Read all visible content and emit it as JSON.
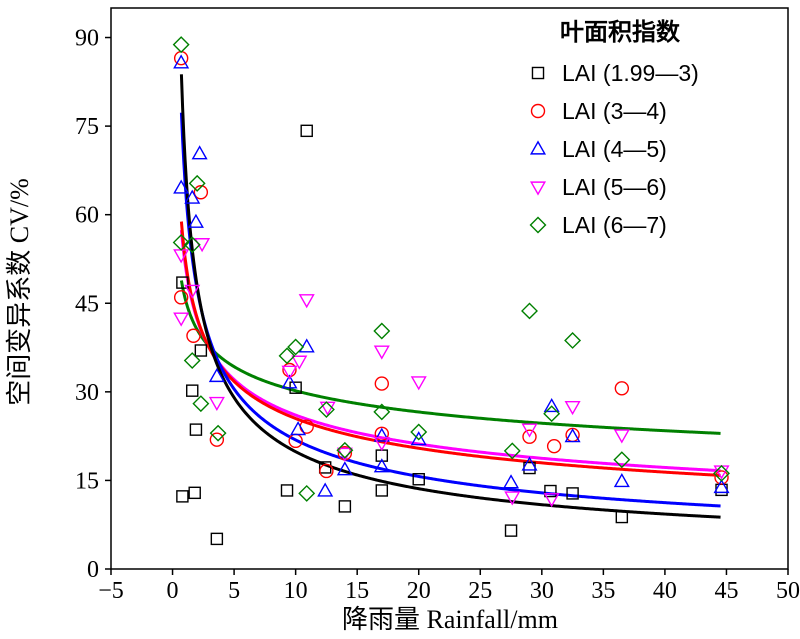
{
  "chart_data": {
    "type": "scatter",
    "xlabel": "降雨量 Rainfall/mm",
    "ylabel": "空间变异系数 CV/%",
    "xlim": [
      -5,
      50
    ],
    "ylim": [
      0,
      95
    ],
    "xticks": [
      -5,
      0,
      5,
      10,
      15,
      20,
      25,
      30,
      35,
      40,
      45,
      50
    ],
    "yticks": [
      0,
      15,
      30,
      45,
      60,
      75,
      90
    ],
    "xtick_labels": [
      "−5",
      "0",
      "5",
      "10",
      "15",
      "20",
      "25",
      "30",
      "35",
      "40",
      "45",
      "50"
    ],
    "ytick_labels": [
      "0",
      "15",
      "30",
      "45",
      "60",
      "75",
      "90"
    ],
    "grid": false,
    "legend_title": "叶面积指数",
    "legend_position": "top-right",
    "series": [
      {
        "name": "LAI (1.99—3)",
        "marker": "square",
        "color": "#000000",
        "points": [
          [
            0.8,
            48.5
          ],
          [
            0.8,
            12.3
          ],
          [
            1.8,
            12.9
          ],
          [
            1.6,
            30.2
          ],
          [
            1.9,
            23.6
          ],
          [
            2.3,
            37.0
          ],
          [
            3.6,
            5.1
          ],
          [
            9.3,
            13.3
          ],
          [
            10.0,
            30.7
          ],
          [
            10.9,
            74.2
          ],
          [
            12.4,
            17.2
          ],
          [
            14.0,
            10.6
          ],
          [
            17.0,
            13.3
          ],
          [
            17.0,
            19.2
          ],
          [
            20.0,
            15.2
          ],
          [
            27.5,
            6.5
          ],
          [
            29.0,
            17.1
          ],
          [
            30.7,
            13.2
          ],
          [
            32.5,
            12.8
          ],
          [
            36.5,
            8.8
          ],
          [
            44.6,
            13.4
          ]
        ],
        "fit": [
          70.0,
          -0.547
        ]
      },
      {
        "name": "LAI (3—4)",
        "marker": "circle",
        "color": "#ff0000",
        "points": [
          [
            0.7,
            86.5
          ],
          [
            0.7,
            46.0
          ],
          [
            1.7,
            39.5
          ],
          [
            2.3,
            63.8
          ],
          [
            3.6,
            21.9
          ],
          [
            9.5,
            33.7
          ],
          [
            10.0,
            21.7
          ],
          [
            10.9,
            24.1
          ],
          [
            12.5,
            16.6
          ],
          [
            14.0,
            19.6
          ],
          [
            17.0,
            31.4
          ],
          [
            17.0,
            22.9
          ],
          [
            29.0,
            22.4
          ],
          [
            31.0,
            20.8
          ],
          [
            32.5,
            22.7
          ],
          [
            36.5,
            30.6
          ],
          [
            44.6,
            15.5
          ]
        ],
        "fit": [
          53.0,
          -0.318
        ]
      },
      {
        "name": "LAI (4—5)",
        "marker": "triangle-up",
        "color": "#0000ff",
        "points": [
          [
            0.7,
            85.7
          ],
          [
            0.7,
            64.5
          ],
          [
            1.6,
            62.8
          ],
          [
            1.9,
            58.7
          ],
          [
            2.2,
            70.3
          ],
          [
            3.6,
            32.6
          ],
          [
            9.5,
            31.5
          ],
          [
            10.2,
            23.6
          ],
          [
            10.9,
            37.6
          ],
          [
            12.4,
            13.2
          ],
          [
            14.0,
            16.8
          ],
          [
            17.0,
            17.3
          ],
          [
            17.0,
            22.5
          ],
          [
            20.0,
            21.9
          ],
          [
            27.5,
            14.6
          ],
          [
            29.0,
            17.6
          ],
          [
            30.8,
            27.5
          ],
          [
            32.5,
            22.4
          ],
          [
            36.5,
            14.8
          ],
          [
            44.6,
            13.8
          ]
        ],
        "fit": [
          66.0,
          -0.48
        ]
      },
      {
        "name": "LAI (5—6)",
        "marker": "triangle-down",
        "color": "#ff00ff",
        "points": [
          [
            0.7,
            53.2
          ],
          [
            0.7,
            42.5
          ],
          [
            1.6,
            47.2
          ],
          [
            2.4,
            55.1
          ],
          [
            3.6,
            28.2
          ],
          [
            9.5,
            33.5
          ],
          [
            10.3,
            35.2
          ],
          [
            10.9,
            45.6
          ],
          [
            12.6,
            27.4
          ],
          [
            14.0,
            19.6
          ],
          [
            17.0,
            36.9
          ],
          [
            17.0,
            21.4
          ],
          [
            20.0,
            31.7
          ],
          [
            27.6,
            12.2
          ],
          [
            29.0,
            23.7
          ],
          [
            30.8,
            11.9
          ],
          [
            32.5,
            27.5
          ],
          [
            36.5,
            22.7
          ],
          [
            44.6,
            16.6
          ]
        ],
        "fit": [
          52.0,
          -0.3
        ]
      },
      {
        "name": "LAI (6—7)",
        "marker": "diamond",
        "color": "#008000",
        "points": [
          [
            0.7,
            88.8
          ],
          [
            0.7,
            55.3
          ],
          [
            1.6,
            54.9
          ],
          [
            1.6,
            35.3
          ],
          [
            2.0,
            65.3
          ],
          [
            2.3,
            28.0
          ],
          [
            3.7,
            23.0
          ],
          [
            9.3,
            36.1
          ],
          [
            10.0,
            37.6
          ],
          [
            10.9,
            12.8
          ],
          [
            12.5,
            27.0
          ],
          [
            14.0,
            20.1
          ],
          [
            17.0,
            40.3
          ],
          [
            17.0,
            26.6
          ],
          [
            20.0,
            23.2
          ],
          [
            27.6,
            20.0
          ],
          [
            29.0,
            43.7
          ],
          [
            30.8,
            26.3
          ],
          [
            32.5,
            38.7
          ],
          [
            36.5,
            18.5
          ],
          [
            44.6,
            16.2
          ]
        ],
        "fit": [
          46.0,
          -0.183
        ]
      }
    ],
    "fit_type": "power"
  }
}
